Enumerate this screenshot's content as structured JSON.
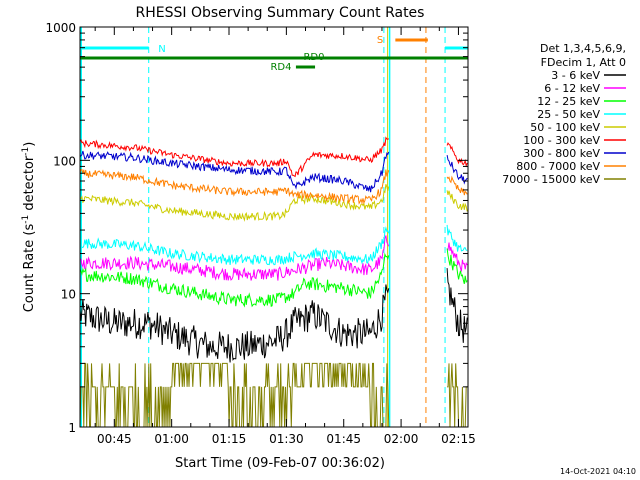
{
  "chart_data": {
    "type": "line",
    "title": "RHESSI Observing Summary Count Rates",
    "xlabel": "Start Time (09-Feb-07 00:36:02)",
    "ylabel_main": "Count Rate (s",
    "ylabel_sup1": "-1",
    "ylabel_mid": " detector",
    "ylabel_sup2": "-1",
    "ylabel_end": ")",
    "y_scale": "log",
    "ylim": [
      1,
      1000
    ],
    "xlim_minutes": [
      36.03,
      137.5
    ],
    "x_ticks": [
      {
        "label": "00:45",
        "minute": 45
      },
      {
        "label": "01:00",
        "minute": 60
      },
      {
        "label": "01:15",
        "minute": 75
      },
      {
        "label": "01:30",
        "minute": 90
      },
      {
        "label": "01:45",
        "minute": 105
      },
      {
        "label": "02:00",
        "minute": 120
      },
      {
        "label": "02:15",
        "minute": 135
      }
    ],
    "y_ticks": [
      {
        "label": "1",
        "value": 1
      },
      {
        "label": "10",
        "value": 10
      },
      {
        "label": "100",
        "value": 100
      },
      {
        "label": "1000",
        "value": 1000
      }
    ],
    "legend_header": [
      "Det 1,3,4,5,6,9,",
      "FDecim 1, Att 0"
    ],
    "legend_position": "right",
    "footer_date": "14-Oct-2021 04:10",
    "flags": [
      {
        "label": "N",
        "color": "#00ffff",
        "start": 36.03,
        "end": 54
      },
      {
        "label": "N",
        "color": "#00ffff",
        "start": 131.5,
        "end": 137.5
      },
      {
        "label": "S",
        "color": "#ff8000",
        "start": 118.5,
        "end": 127
      },
      {
        "label": "RD0",
        "color": "#008000",
        "start": 36.03,
        "end": 137.5
      },
      {
        "label": "RD4",
        "color": "#008000",
        "start": 92.5,
        "end": 97.5
      }
    ],
    "flag_labels": {
      "n": "N",
      "s": "S",
      "rd0": "RD0",
      "rd4": "RD4"
    },
    "night_intervals": [
      [
        36.03,
        54
      ],
      [
        115.5,
        131.5
      ]
    ],
    "data_gap": [
      117,
      132
    ],
    "series": [
      {
        "name": "3 - 6 keV",
        "color": "#000000",
        "anchors": [
          [
            36.03,
            7
          ],
          [
            45,
            6
          ],
          [
            54,
            6
          ],
          [
            60,
            5
          ],
          [
            70,
            4
          ],
          [
            80,
            4
          ],
          [
            88,
            4.5
          ],
          [
            90,
            5
          ],
          [
            92,
            6
          ],
          [
            97,
            7
          ],
          [
            105,
            5
          ],
          [
            112,
            5
          ],
          [
            115,
            7
          ],
          [
            116,
            9
          ],
          [
            132,
            12
          ],
          [
            135,
            6
          ],
          [
            137.5,
            5
          ]
        ]
      },
      {
        "name": "6 - 12 keV",
        "color": "#ff00ff",
        "anchors": [
          [
            36.03,
            17
          ],
          [
            50,
            17
          ],
          [
            60,
            16
          ],
          [
            75,
            14
          ],
          [
            88,
            14
          ],
          [
            92,
            15
          ],
          [
            100,
            17
          ],
          [
            112,
            15
          ],
          [
            115,
            18
          ],
          [
            116,
            25
          ],
          [
            132,
            24
          ],
          [
            135,
            17
          ],
          [
            137.5,
            15
          ]
        ]
      },
      {
        "name": "12 - 25 keV",
        "color": "#00ff00",
        "anchors": [
          [
            36.03,
            14
          ],
          [
            50,
            13
          ],
          [
            60,
            11
          ],
          [
            75,
            9
          ],
          [
            88,
            9
          ],
          [
            92,
            10
          ],
          [
            95,
            12
          ],
          [
            105,
            11
          ],
          [
            112,
            10
          ],
          [
            115,
            14
          ],
          [
            116,
            20
          ],
          [
            132,
            20
          ],
          [
            135,
            14
          ],
          [
            137.5,
            12
          ]
        ]
      },
      {
        "name": "25 - 50 keV",
        "color": "#00ffff",
        "anchors": [
          [
            36.03,
            24
          ],
          [
            50,
            23
          ],
          [
            60,
            20
          ],
          [
            75,
            18
          ],
          [
            88,
            18
          ],
          [
            92,
            19
          ],
          [
            97,
            20
          ],
          [
            105,
            19
          ],
          [
            112,
            18
          ],
          [
            115,
            24
          ],
          [
            116,
            30
          ],
          [
            132,
            30
          ],
          [
            135,
            22
          ],
          [
            137.5,
            20
          ]
        ]
      },
      {
        "name": "50 - 100 keV",
        "color": "#cccc00",
        "anchors": [
          [
            36.03,
            52
          ],
          [
            50,
            48
          ],
          [
            60,
            42
          ],
          [
            75,
            38
          ],
          [
            88,
            38
          ],
          [
            90,
            40
          ],
          [
            92,
            50
          ],
          [
            97,
            52
          ],
          [
            100,
            50
          ],
          [
            112,
            44
          ],
          [
            115,
            50
          ],
          [
            116,
            62
          ],
          [
            132,
            58
          ],
          [
            135,
            46
          ],
          [
            137.5,
            44
          ]
        ]
      },
      {
        "name": "100 - 300 keV",
        "color": "#ff0000",
        "anchors": [
          [
            36.03,
            135
          ],
          [
            50,
            125
          ],
          [
            60,
            110
          ],
          [
            75,
            95
          ],
          [
            88,
            95
          ],
          [
            90,
            100
          ],
          [
            92,
            75
          ],
          [
            97,
            110
          ],
          [
            105,
            108
          ],
          [
            112,
            100
          ],
          [
            115,
            120
          ],
          [
            116,
            140
          ],
          [
            132,
            135
          ],
          [
            135,
            100
          ],
          [
            137.5,
            95
          ]
        ]
      },
      {
        "name": "300 - 800 keV",
        "color": "#0000cc",
        "anchors": [
          [
            36.03,
            110
          ],
          [
            50,
            105
          ],
          [
            60,
            95
          ],
          [
            75,
            85
          ],
          [
            88,
            82
          ],
          [
            90,
            85
          ],
          [
            92,
            62
          ],
          [
            97,
            75
          ],
          [
            105,
            70
          ],
          [
            112,
            60
          ],
          [
            115,
            80
          ],
          [
            116,
            110
          ],
          [
            132,
            105
          ],
          [
            135,
            75
          ],
          [
            137.5,
            70
          ]
        ]
      },
      {
        "name": "800 - 7000 keV",
        "color": "#ff8000",
        "anchors": [
          [
            36.03,
            80
          ],
          [
            50,
            75
          ],
          [
            60,
            65
          ],
          [
            75,
            58
          ],
          [
            88,
            58
          ],
          [
            90,
            60
          ],
          [
            92,
            55
          ],
          [
            97,
            55
          ],
          [
            105,
            52
          ],
          [
            112,
            50
          ],
          [
            115,
            60
          ],
          [
            116,
            80
          ],
          [
            132,
            78
          ],
          [
            135,
            60
          ],
          [
            137.5,
            55
          ]
        ]
      },
      {
        "name": "7000 - 15000 keV",
        "color": "#808000",
        "anchors": [
          [
            36.03,
            2
          ],
          [
            50,
            2
          ],
          [
            60,
            2.5
          ],
          [
            70,
            2
          ],
          [
            80,
            2
          ],
          [
            90,
            2.5
          ],
          [
            100,
            2.5
          ],
          [
            112,
            2
          ],
          [
            115,
            2
          ],
          [
            116,
            3
          ],
          [
            132,
            2
          ],
          [
            135,
            1.5
          ],
          [
            137.5,
            1.5
          ]
        ]
      }
    ]
  }
}
